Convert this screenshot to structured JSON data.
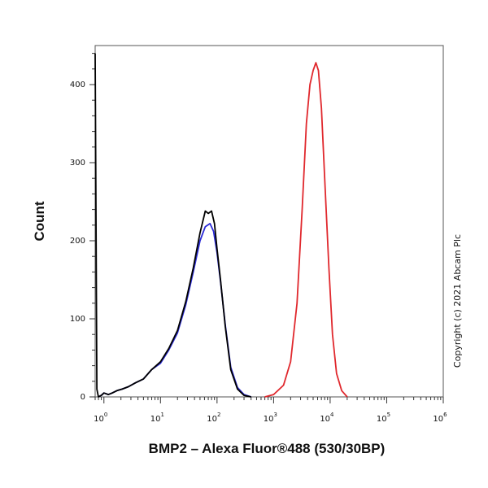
{
  "chart_data": {
    "type": "line",
    "xlabel": "BMP2 – Alexa Fluor®488 (530/30BP)",
    "ylabel": "Count",
    "xscale": "log",
    "xlim": [
      0.7,
      1000000
    ],
    "ylim": [
      0,
      450
    ],
    "x_ticks": [
      {
        "base": "10",
        "exp": "0",
        "value": 1
      },
      {
        "base": "10",
        "exp": "1",
        "value": 10
      },
      {
        "base": "10",
        "exp": "2",
        "value": 100
      },
      {
        "base": "10",
        "exp": "3",
        "value": 1000
      },
      {
        "base": "10",
        "exp": "4",
        "value": 10000
      },
      {
        "base": "10",
        "exp": "5",
        "value": 100000
      },
      {
        "base": "10",
        "exp": "6",
        "value": 1000000
      }
    ],
    "y_ticks": [
      0,
      100,
      200,
      300,
      400
    ],
    "grid": false,
    "series": [
      {
        "color": "#2b2bd6",
        "x": [
          0.8,
          0.9,
          1.0,
          1.2,
          1.4,
          1.7,
          2.1,
          2.7,
          3.6,
          5,
          7,
          10,
          14,
          20,
          28,
          38,
          50,
          62,
          75,
          87,
          100,
          115,
          140,
          175,
          230,
          300,
          400
        ],
        "y": [
          0,
          2,
          5,
          3,
          5,
          8,
          10,
          13,
          18,
          23,
          35,
          43,
          60,
          82,
          118,
          160,
          200,
          218,
          222,
          212,
          185,
          148,
          92,
          38,
          12,
          3,
          0
        ]
      },
      {
        "color": "#000000",
        "x": [
          0.7,
          0.75,
          0.8,
          0.9,
          1.0,
          1.2,
          1.4,
          1.7,
          2.1,
          2.7,
          3.6,
          5,
          7,
          10,
          14,
          20,
          28,
          38,
          50,
          62,
          70,
          80,
          90,
          100,
          115,
          140,
          175,
          230,
          300,
          400
        ],
        "y": [
          440,
          10,
          0,
          2,
          5,
          3,
          5,
          8,
          10,
          13,
          18,
          23,
          35,
          45,
          62,
          85,
          122,
          165,
          210,
          238,
          235,
          238,
          222,
          190,
          150,
          90,
          35,
          10,
          2,
          0
        ]
      },
      {
        "color": "#e0282d",
        "x": [
          700,
          1000,
          1500,
          2000,
          2600,
          3200,
          3800,
          4400,
          5000,
          5600,
          6200,
          7000,
          8000,
          9500,
          11000,
          13000,
          16000,
          20000
        ],
        "y": [
          0,
          3,
          15,
          45,
          120,
          240,
          350,
          400,
          418,
          428,
          418,
          370,
          280,
          165,
          80,
          30,
          8,
          0
        ]
      }
    ]
  },
  "copyright": "Copyright (c) 2021 Abcam Plc"
}
